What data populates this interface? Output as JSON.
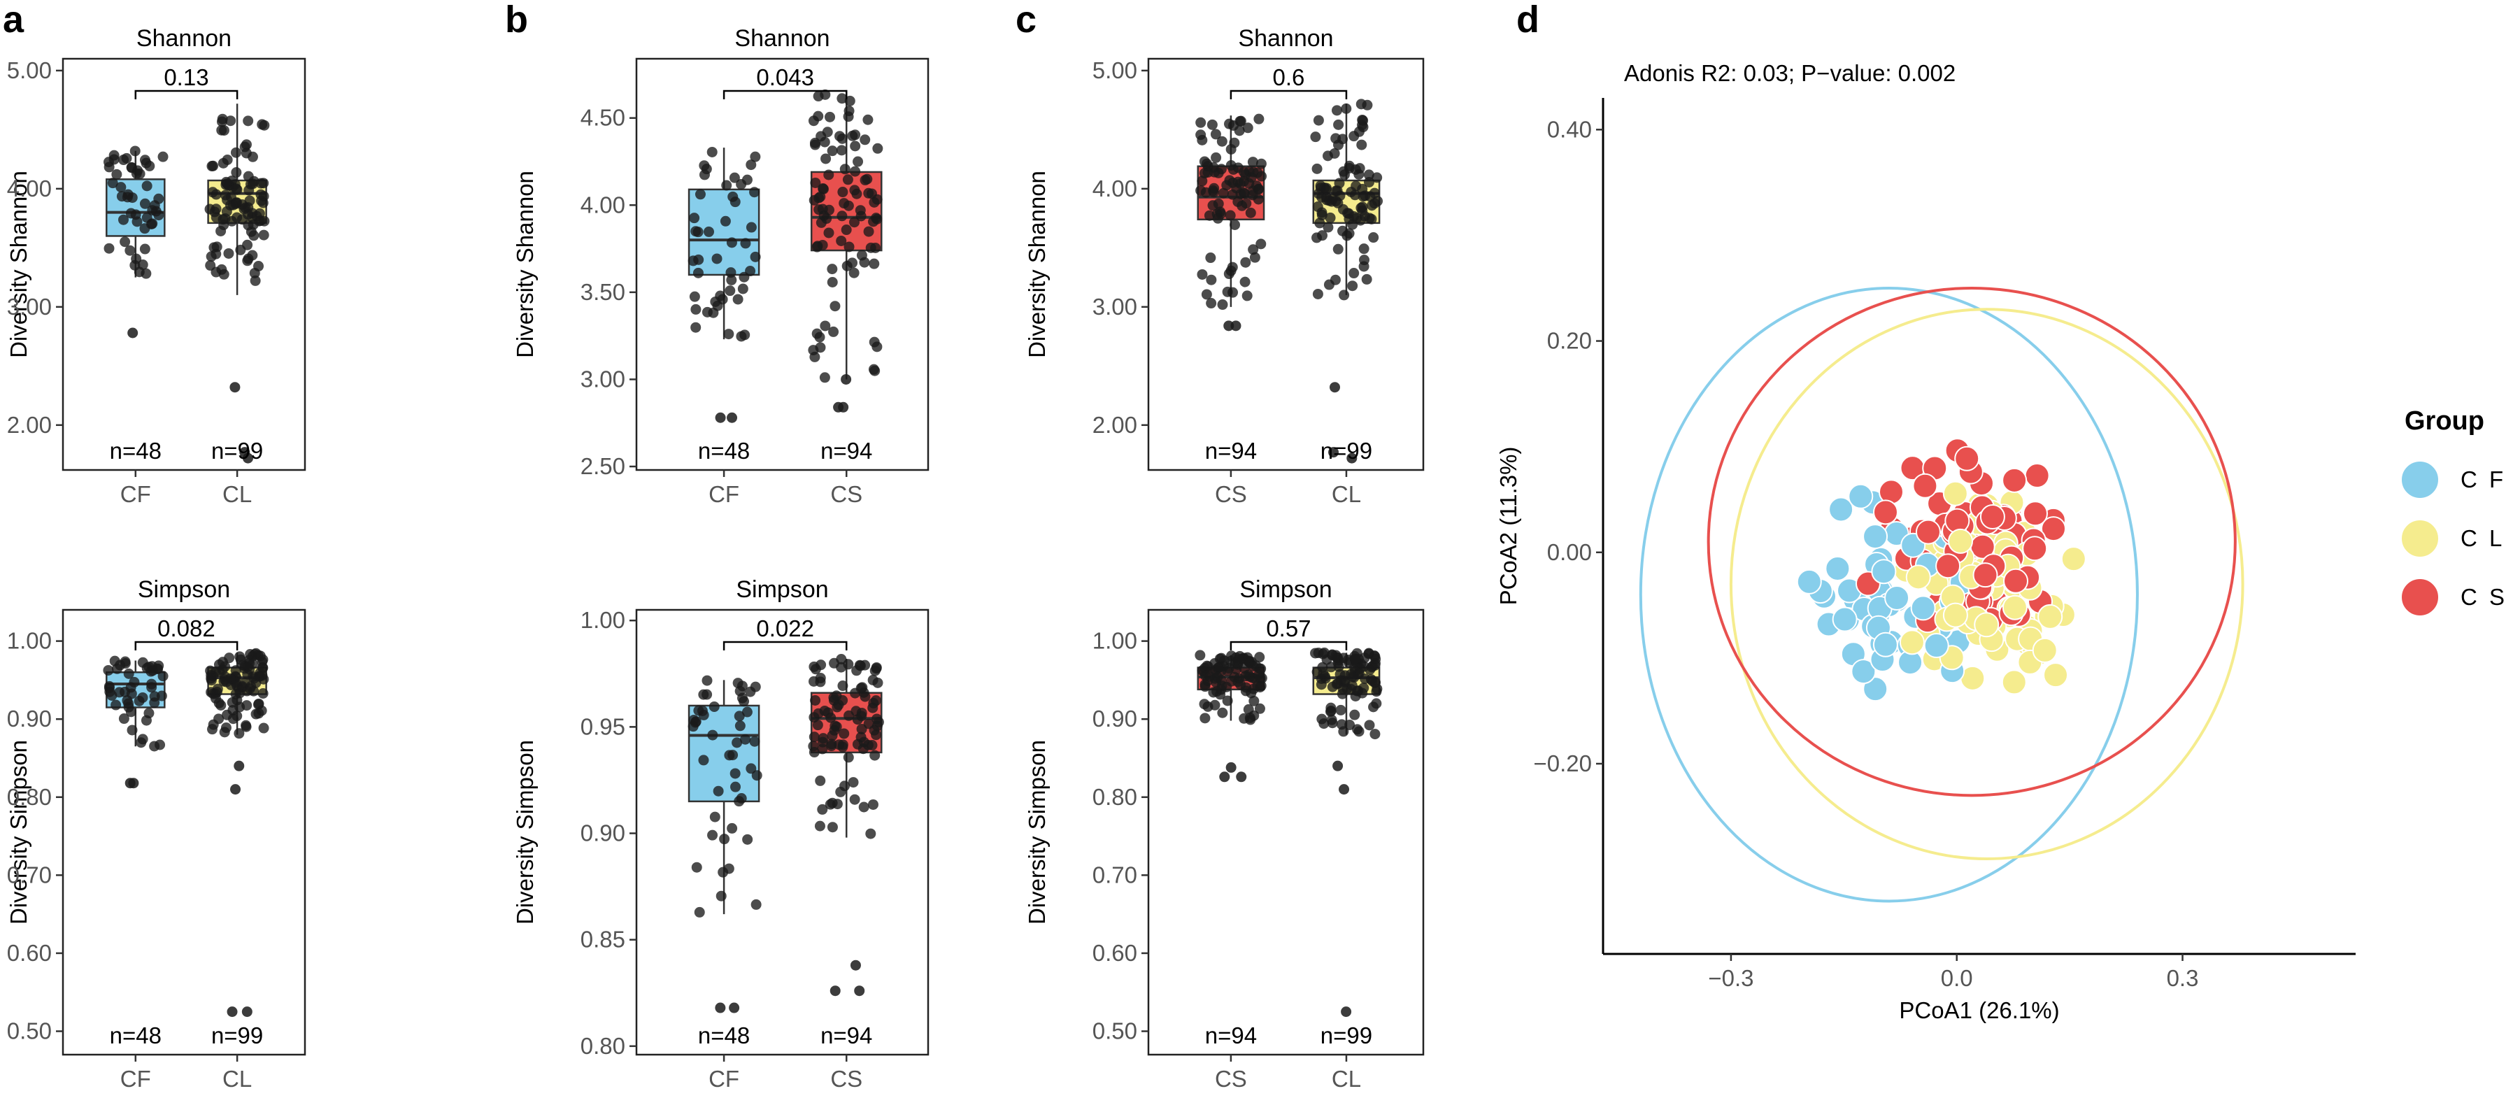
{
  "colors": {
    "CF": "#87CEEB",
    "CL": "#F5EC8E",
    "CS": "#E8504E",
    "point": "#1a1a1a",
    "axis": "#000000",
    "tick": "#555555"
  },
  "chart_data": [
    {
      "panel": "a",
      "type": "box",
      "title": "Shannon",
      "ylabel": "Diversity Shannon",
      "ylim": [
        1.62,
        5.1
      ],
      "yticks": [
        2.0,
        3.0,
        4.0,
        5.0
      ],
      "ytick_labels": [
        "2.00",
        "3.00",
        "4.00",
        "5.00"
      ],
      "categories": [
        "CF",
        "CL"
      ],
      "n_labels": [
        "n=48",
        "n=99"
      ],
      "boxes": [
        {
          "group": "CF",
          "n": 48,
          "q1": 3.6,
          "median": 3.8,
          "q3": 4.08,
          "whisker_low": 3.25,
          "whisker_high": 4.32,
          "outliers": [
            2.78
          ]
        },
        {
          "group": "CL",
          "n": 99,
          "q1": 3.71,
          "median": 3.96,
          "q3": 4.07,
          "whisker_low": 3.1,
          "whisker_high": 4.72,
          "outliers": [
            2.32,
            1.77,
            1.72
          ]
        }
      ],
      "pvalue": "0.13"
    },
    {
      "panel": "a",
      "type": "box",
      "title": "Simpson",
      "ylabel": "Diversity Simpson",
      "ylim": [
        0.47,
        1.04
      ],
      "yticks": [
        0.5,
        0.6,
        0.7,
        0.8,
        0.9,
        1.0
      ],
      "ytick_labels": [
        "0.50",
        "0.60",
        "0.70",
        "0.80",
        "0.90",
        "1.00"
      ],
      "categories": [
        "CF",
        "CL"
      ],
      "n_labels": [
        "n=48",
        "n=99"
      ],
      "boxes": [
        {
          "group": "CF",
          "n": 48,
          "q1": 0.915,
          "median": 0.945,
          "q3": 0.96,
          "whisker_low": 0.865,
          "whisker_high": 0.975,
          "outliers": [
            0.818,
            0.818
          ]
        },
        {
          "group": "CL",
          "n": 99,
          "q1": 0.932,
          "median": 0.953,
          "q3": 0.966,
          "whisker_low": 0.88,
          "whisker_high": 0.985,
          "outliers": [
            0.84,
            0.81,
            0.525,
            0.525
          ]
        }
      ],
      "pvalue": "0.082"
    },
    {
      "panel": "b",
      "type": "box",
      "title": "Shannon",
      "ylabel": "Diversity Shannon",
      "ylim": [
        2.48,
        4.84
      ],
      "yticks": [
        2.5,
        3.0,
        3.5,
        4.0,
        4.5
      ],
      "ytick_labels": [
        "2.50",
        "3.00",
        "3.50",
        "4.00",
        "4.50"
      ],
      "categories": [
        "CF",
        "CS"
      ],
      "n_labels": [
        "n=48",
        "n=94"
      ],
      "boxes": [
        {
          "group": "CF",
          "n": 48,
          "q1": 3.6,
          "median": 3.8,
          "q3": 4.09,
          "whisker_low": 3.23,
          "whisker_high": 4.33,
          "outliers": [
            2.78,
            2.78
          ]
        },
        {
          "group": "CS",
          "n": 94,
          "q1": 3.74,
          "median": 3.93,
          "q3": 4.19,
          "whisker_low": 3.0,
          "whisker_high": 4.66,
          "outliers": [
            2.84,
            2.84,
            3.0
          ]
        }
      ],
      "pvalue": "0.043"
    },
    {
      "panel": "b",
      "type": "box",
      "title": "Simpson",
      "ylabel": "Diversity Simpson",
      "ylim": [
        0.796,
        1.005
      ],
      "yticks": [
        0.8,
        0.85,
        0.9,
        0.95,
        1.0
      ],
      "ytick_labels": [
        "0.80",
        "0.85",
        "0.90",
        "0.95",
        "1.00"
      ],
      "categories": [
        "CF",
        "CS"
      ],
      "n_labels": [
        "n=48",
        "n=94"
      ],
      "boxes": [
        {
          "group": "CF",
          "n": 48,
          "q1": 0.915,
          "median": 0.946,
          "q3": 0.96,
          "whisker_low": 0.862,
          "whisker_high": 0.972,
          "outliers": [
            0.818,
            0.818
          ]
        },
        {
          "group": "CS",
          "n": 94,
          "q1": 0.938,
          "median": 0.954,
          "q3": 0.966,
          "whisker_low": 0.898,
          "whisker_high": 0.982,
          "outliers": [
            0.838,
            0.826,
            0.826
          ]
        }
      ],
      "pvalue": "0.022"
    },
    {
      "panel": "c",
      "type": "box",
      "title": "Shannon",
      "ylabel": "Diversity Shannon",
      "ylim": [
        1.62,
        5.1
      ],
      "yticks": [
        2.0,
        3.0,
        4.0,
        5.0
      ],
      "ytick_labels": [
        "2.00",
        "3.00",
        "4.00",
        "5.00"
      ],
      "categories": [
        "CS",
        "CL"
      ],
      "n_labels": [
        "n=94",
        "n=99"
      ],
      "boxes": [
        {
          "group": "CS",
          "n": 94,
          "q1": 3.74,
          "median": 3.93,
          "q3": 4.19,
          "whisker_low": 3.0,
          "whisker_high": 4.62,
          "outliers": [
            2.84,
            2.84
          ]
        },
        {
          "group": "CL",
          "n": 99,
          "q1": 3.71,
          "median": 3.96,
          "q3": 4.07,
          "whisker_low": 3.1,
          "whisker_high": 4.72,
          "outliers": [
            2.32,
            1.77,
            1.72
          ]
        }
      ],
      "pvalue": "0.6"
    },
    {
      "panel": "c",
      "type": "box",
      "title": "Simpson",
      "ylabel": "Diversity Simpson",
      "ylim": [
        0.47,
        1.04
      ],
      "yticks": [
        0.5,
        0.6,
        0.7,
        0.8,
        0.9,
        1.0
      ],
      "ytick_labels": [
        "0.50",
        "0.60",
        "0.70",
        "0.80",
        "0.90",
        "1.00"
      ],
      "categories": [
        "CS",
        "CL"
      ],
      "n_labels": [
        "n=94",
        "n=99"
      ],
      "boxes": [
        {
          "group": "CS",
          "n": 94,
          "q1": 0.938,
          "median": 0.954,
          "q3": 0.966,
          "whisker_low": 0.898,
          "whisker_high": 0.982,
          "outliers": [
            0.838,
            0.826,
            0.826
          ]
        },
        {
          "group": "CL",
          "n": 99,
          "q1": 0.932,
          "median": 0.953,
          "q3": 0.966,
          "whisker_low": 0.88,
          "whisker_high": 0.985,
          "outliers": [
            0.84,
            0.81,
            0.525
          ]
        }
      ],
      "pvalue": "0.57"
    },
    {
      "panel": "d",
      "type": "scatter",
      "subtitle": "Adonis R2: 0.03; P−value: 0.002",
      "xlabel": "PCoA1 (26.1%)",
      "ylabel": "PCoA2 (11.3%)",
      "xlim": [
        -0.47,
        0.53
      ],
      "ylim": [
        -0.38,
        0.43
      ],
      "xticks": [
        -0.3,
        0.0,
        0.3
      ],
      "xtick_labels": [
        "−0.3",
        "0.0",
        "0.3"
      ],
      "yticks": [
        -0.2,
        0.0,
        0.2,
        0.4
      ],
      "ytick_labels": [
        "−0.20",
        "0.00",
        "0.20",
        "0.40"
      ],
      "legend": {
        "title": "Group",
        "position": "right",
        "groups": [
          "CF",
          "CL",
          "CS"
        ],
        "labels": [
          "C F",
          "C L",
          "C S"
        ]
      },
      "ellipses": [
        {
          "group": "CF",
          "cx": -0.09,
          "cy": -0.04,
          "rx": 0.33,
          "ry": 0.29
        },
        {
          "group": "CL",
          "cx": 0.04,
          "cy": -0.03,
          "rx": 0.34,
          "ry": 0.26
        },
        {
          "group": "CS",
          "cx": 0.02,
          "cy": 0.01,
          "rx": 0.35,
          "ry": 0.24
        }
      ],
      "n_points": {
        "CF": 48,
        "CL": 99,
        "CS": 94
      }
    }
  ]
}
